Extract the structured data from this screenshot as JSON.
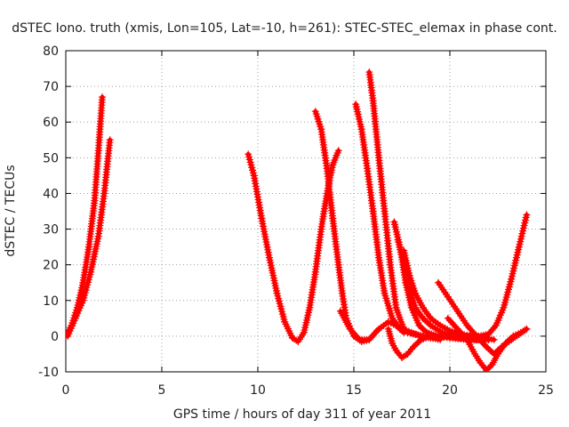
{
  "chart_data": {
    "type": "scatter",
    "title": "dSTEC Iono. truth (xmis, Lon=105, Lat=-10, h=261): STEC-STEC_elemax in phase cont.",
    "xlabel": "GPS time / hours of day 311 of year 2011",
    "ylabel": "dSTEC  / TECUs",
    "xlim": [
      0,
      25
    ],
    "ylim": [
      -10,
      80
    ],
    "xticks": [
      0,
      5,
      10,
      15,
      20,
      25
    ],
    "yticks": [
      -10,
      0,
      10,
      20,
      30,
      40,
      50,
      60,
      70,
      80
    ],
    "grid": true,
    "marker": "+",
    "color": "#ff0000",
    "series": [
      {
        "x": [
          0.0,
          0.3,
          0.6,
          0.9,
          1.2,
          1.5,
          1.7,
          1.9
        ],
        "y": [
          0,
          3,
          8,
          15,
          25,
          38,
          52,
          67
        ]
      },
      {
        "x": [
          0.1,
          0.5,
          0.9,
          1.3,
          1.7,
          2.0,
          2.3
        ],
        "y": [
          0,
          5,
          10,
          18,
          28,
          40,
          55
        ]
      },
      {
        "x": [
          9.5,
          9.8,
          10.2,
          10.6,
          11.0,
          11.4,
          11.8,
          12.1,
          12.4,
          12.7,
          13.0,
          13.3,
          13.6,
          13.9,
          14.2
        ],
        "y": [
          51,
          45,
          33,
          22,
          12,
          4,
          -0.5,
          -1.5,
          1,
          8,
          18,
          30,
          40,
          48,
          52
        ]
      },
      {
        "x": [
          13.0,
          13.3,
          13.6,
          13.9,
          14.2,
          14.4,
          14.6,
          15.0,
          15.4,
          15.8,
          16.2
        ],
        "y": [
          63,
          58,
          47,
          33,
          20,
          12,
          5,
          0,
          -1.5,
          -1.0,
          1.5
        ]
      },
      {
        "x": [
          15.1,
          15.4,
          15.7,
          16.0,
          16.3,
          16.6,
          17.0,
          17.4,
          17.8,
          18.2,
          18.6,
          19.5
        ],
        "y": [
          65,
          58,
          47,
          35,
          22,
          12,
          5,
          2,
          1,
          0.5,
          0,
          -1
        ]
      },
      {
        "x": [
          15.8,
          16.0,
          16.3,
          16.6,
          16.9,
          17.2,
          17.6,
          18.0,
          18.5,
          19.0,
          20.0,
          21.0,
          22.0
        ],
        "y": [
          74,
          66,
          50,
          35,
          20,
          8,
          2,
          1,
          0,
          -0.5,
          0,
          0,
          -0.5
        ]
      },
      {
        "x": [
          14.3,
          14.8,
          15.3,
          15.8,
          16.3,
          16.8,
          17.2,
          17.6
        ],
        "y": [
          7,
          2,
          -1,
          -1,
          2,
          4,
          3,
          1
        ]
      },
      {
        "x": [
          17.1,
          17.4,
          17.7,
          18.0,
          18.4,
          18.8,
          19.4,
          20.0,
          21.0,
          22.0
        ],
        "y": [
          32,
          25,
          15,
          8,
          3,
          1,
          0,
          -0.5,
          -1,
          -1
        ]
      },
      {
        "x": [
          17.3,
          17.6,
          17.9,
          18.2,
          18.6,
          19.0,
          19.6,
          20.2,
          20.8,
          21.4,
          22.0
        ],
        "y": [
          27,
          20,
          13,
          8,
          5,
          3,
          1,
          0,
          -0.5,
          -1,
          -1
        ]
      },
      {
        "x": [
          17.6,
          17.9,
          18.2,
          18.6,
          19.0,
          19.5,
          20.0,
          20.6,
          21.2,
          21.8,
          22.3
        ],
        "y": [
          24,
          17,
          12,
          8,
          5,
          3,
          1.5,
          0.5,
          0,
          -0.5,
          -1
        ]
      },
      {
        "x": [
          16.8,
          17.0,
          17.2,
          17.5,
          17.8,
          18.1,
          18.5,
          19.0,
          19.8,
          20.5,
          21.5
        ],
        "y": [
          2,
          -2,
          -4,
          -6,
          -5,
          -3,
          -1,
          0,
          0,
          -0.5,
          -1
        ]
      },
      {
        "x": [
          19.4,
          19.9,
          20.4,
          20.9,
          21.4,
          21.9,
          22.3,
          22.7,
          23.2,
          23.6,
          24.0
        ],
        "y": [
          15,
          11,
          7,
          3,
          0,
          -3,
          -5,
          -3,
          -1,
          0.5,
          2
        ]
      },
      {
        "x": [
          19.9,
          20.4,
          20.9,
          21.3,
          21.6,
          21.9,
          22.2,
          22.5,
          22.9,
          23.3,
          23.7,
          24.0
        ],
        "y": [
          5,
          2,
          -1,
          -5,
          -7.5,
          -9.5,
          -8,
          -5,
          -2,
          0,
          1,
          2
        ]
      },
      {
        "x": [
          21.0,
          21.5,
          22.0,
          22.4,
          22.8,
          23.2,
          23.6,
          24.0
        ],
        "y": [
          0,
          0,
          0.5,
          3,
          8,
          16,
          25,
          34
        ]
      }
    ]
  }
}
